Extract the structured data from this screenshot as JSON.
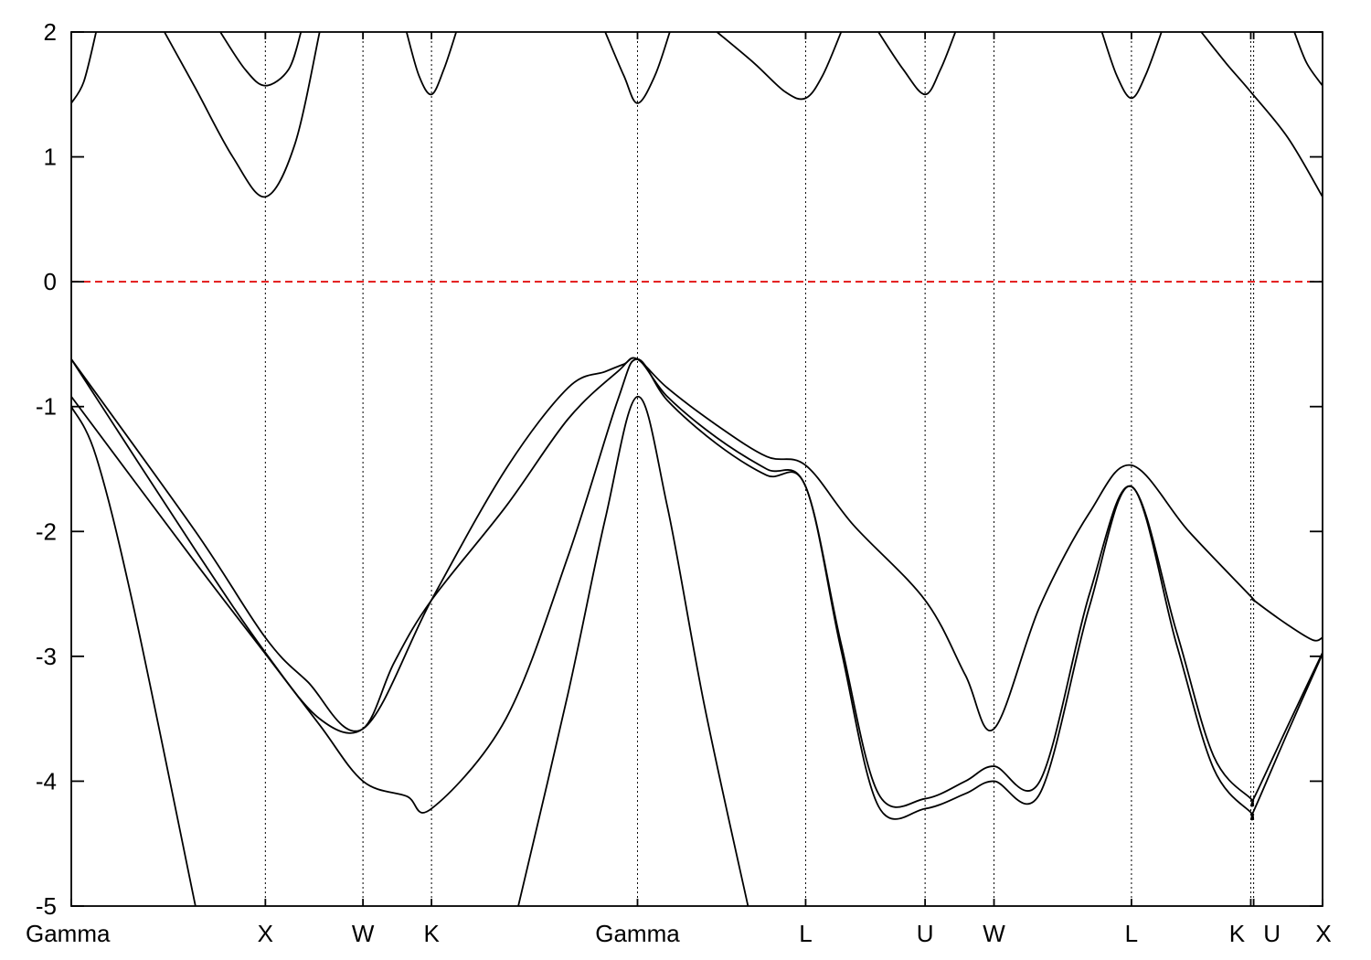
{
  "chart_data": {
    "type": "line",
    "title": "",
    "xlabel": "",
    "ylabel": "",
    "ylim": [
      -5,
      2
    ],
    "xlim": [
      0,
      10.077
    ],
    "yticks": [
      "2",
      "1",
      "0",
      "-1",
      "-2",
      "-3",
      "-4",
      "-5"
    ],
    "ytick_values": [
      2,
      1,
      0,
      -1,
      -2,
      -3,
      -4,
      -5
    ],
    "kpoints": [
      {
        "label": "Gamma",
        "x": 0.0
      },
      {
        "label": "X",
        "x": 1.563
      },
      {
        "label": "W",
        "x": 2.349
      },
      {
        "label": "K",
        "x": 2.901
      },
      {
        "label": "Gamma",
        "x": 4.56
      },
      {
        "label": "L",
        "x": 5.914
      },
      {
        "label": "U",
        "x": 6.876
      },
      {
        "label": "W",
        "x": 7.431
      },
      {
        "label": "L",
        "x": 8.538
      },
      {
        "label": "K",
        "x": 9.499
      },
      {
        "label": "U",
        "x": 9.522
      },
      {
        "label": "X",
        "x": 10.077
      }
    ],
    "fermi_level": 0,
    "fermi_color": "#e00000",
    "series": [
      {
        "x": [
          0,
          1.0,
          1.563,
          1.9,
          2.349,
          2.9,
          3.5,
          4.0,
          4.3,
          4.45,
          4.56,
          4.8,
          5.2,
          5.6,
          5.914,
          6.3,
          6.876,
          7.2,
          7.431,
          7.8,
          8.2,
          8.538,
          9.0,
          9.499,
          9.522,
          9.8,
          10.0,
          10.077
        ],
        "y": [
          -0.62,
          -2.0,
          -2.85,
          -3.2,
          -3.58,
          -2.55,
          -1.5,
          -0.85,
          -0.72,
          -0.66,
          -0.62,
          -0.85,
          -1.15,
          -1.4,
          -1.47,
          -1.95,
          -2.55,
          -3.15,
          -3.58,
          -2.6,
          -1.85,
          -1.47,
          -2.0,
          -2.52,
          -2.55,
          -2.75,
          -2.87,
          -2.85
        ]
      },
      {
        "x": [
          0,
          1.0,
          1.563,
          2.0,
          2.349,
          2.6,
          2.901,
          3.5,
          4.0,
          4.4,
          4.56,
          4.8,
          5.2,
          5.6,
          5.914,
          6.2,
          6.5,
          6.876,
          7.2,
          7.431,
          7.8,
          8.2,
          8.538,
          8.9,
          9.2,
          9.499,
          9.522,
          9.8,
          10.077
        ],
        "y": [
          -0.62,
          -2.15,
          -2.97,
          -3.5,
          -3.58,
          -3.05,
          -2.55,
          -1.8,
          -1.1,
          -0.72,
          -0.62,
          -0.92,
          -1.25,
          -1.5,
          -1.64,
          -2.9,
          -4.1,
          -4.14,
          -4.0,
          -3.88,
          -4.0,
          -2.5,
          -1.64,
          -2.8,
          -3.8,
          -4.14,
          -4.14,
          -3.55,
          -2.97
        ]
      },
      {
        "x": [
          0,
          1.0,
          1.563,
          2.0,
          2.349,
          2.7,
          2.901,
          3.5,
          4.0,
          4.4,
          4.56,
          4.8,
          5.2,
          5.6,
          5.914,
          6.2,
          6.5,
          6.876,
          7.2,
          7.431,
          7.8,
          8.2,
          8.538,
          8.9,
          9.2,
          9.499,
          9.522,
          9.8,
          10.077
        ],
        "y": [
          -0.92,
          -2.25,
          -2.98,
          -3.55,
          -4.0,
          -4.12,
          -4.22,
          -3.5,
          -2.2,
          -0.95,
          -0.62,
          -0.95,
          -1.3,
          -1.55,
          -1.64,
          -2.95,
          -4.2,
          -4.22,
          -4.1,
          -4.0,
          -4.1,
          -2.6,
          -1.64,
          -2.9,
          -3.9,
          -4.25,
          -4.24,
          -3.6,
          -2.98
        ]
      },
      {
        "x": [
          0,
          0.2,
          0.5,
          1.0
        ],
        "y": [
          -1.0,
          -1.4,
          -2.6,
          -5.0
        ]
      },
      {
        "x": [
          3.6,
          4.0,
          4.3,
          4.56,
          4.8,
          5.1,
          5.45
        ],
        "y": [
          -5.0,
          -3.3,
          -1.9,
          -0.92,
          -1.8,
          -3.4,
          -5.0
        ]
      },
      {
        "x": [
          0,
          0.1,
          0.2
        ],
        "y": [
          1.43,
          1.6,
          2.0
        ]
      },
      {
        "x": [
          0.75,
          1.0,
          1.3,
          1.563,
          1.8,
          2.0
        ],
        "y": [
          2.0,
          1.55,
          1.0,
          0.68,
          1.1,
          2.0
        ]
      },
      {
        "x": [
          1.2,
          1.4,
          1.563,
          1.75,
          1.85
        ],
        "y": [
          2.0,
          1.7,
          1.57,
          1.7,
          2.0
        ]
      },
      {
        "x": [
          2.7,
          2.8,
          2.901,
          3.0,
          3.1
        ],
        "y": [
          2.0,
          1.65,
          1.5,
          1.7,
          2.0
        ]
      },
      {
        "x": [
          4.3,
          4.45,
          4.56,
          4.7,
          4.82
        ],
        "y": [
          2.0,
          1.65,
          1.43,
          1.65,
          2.0
        ]
      },
      {
        "x": [
          5.2,
          5.5,
          5.75,
          5.914,
          6.05,
          6.2
        ],
        "y": [
          2.0,
          1.75,
          1.52,
          1.47,
          1.65,
          2.0
        ]
      },
      {
        "x": [
          6.5,
          6.7,
          6.876,
          7.0,
          7.12
        ],
        "y": [
          2.0,
          1.7,
          1.5,
          1.7,
          2.0
        ]
      },
      {
        "x": [
          8.3,
          8.42,
          8.538,
          8.65,
          8.78
        ],
        "y": [
          2.0,
          1.65,
          1.47,
          1.65,
          2.0
        ]
      },
      {
        "x": [
          9.1,
          9.3,
          9.499,
          9.8,
          10.077
        ],
        "y": [
          2.0,
          1.75,
          1.52,
          1.15,
          0.68
        ]
      },
      {
        "x": [
          9.85,
          9.95,
          10.077
        ],
        "y": [
          2.0,
          1.75,
          1.57
        ]
      }
    ]
  }
}
